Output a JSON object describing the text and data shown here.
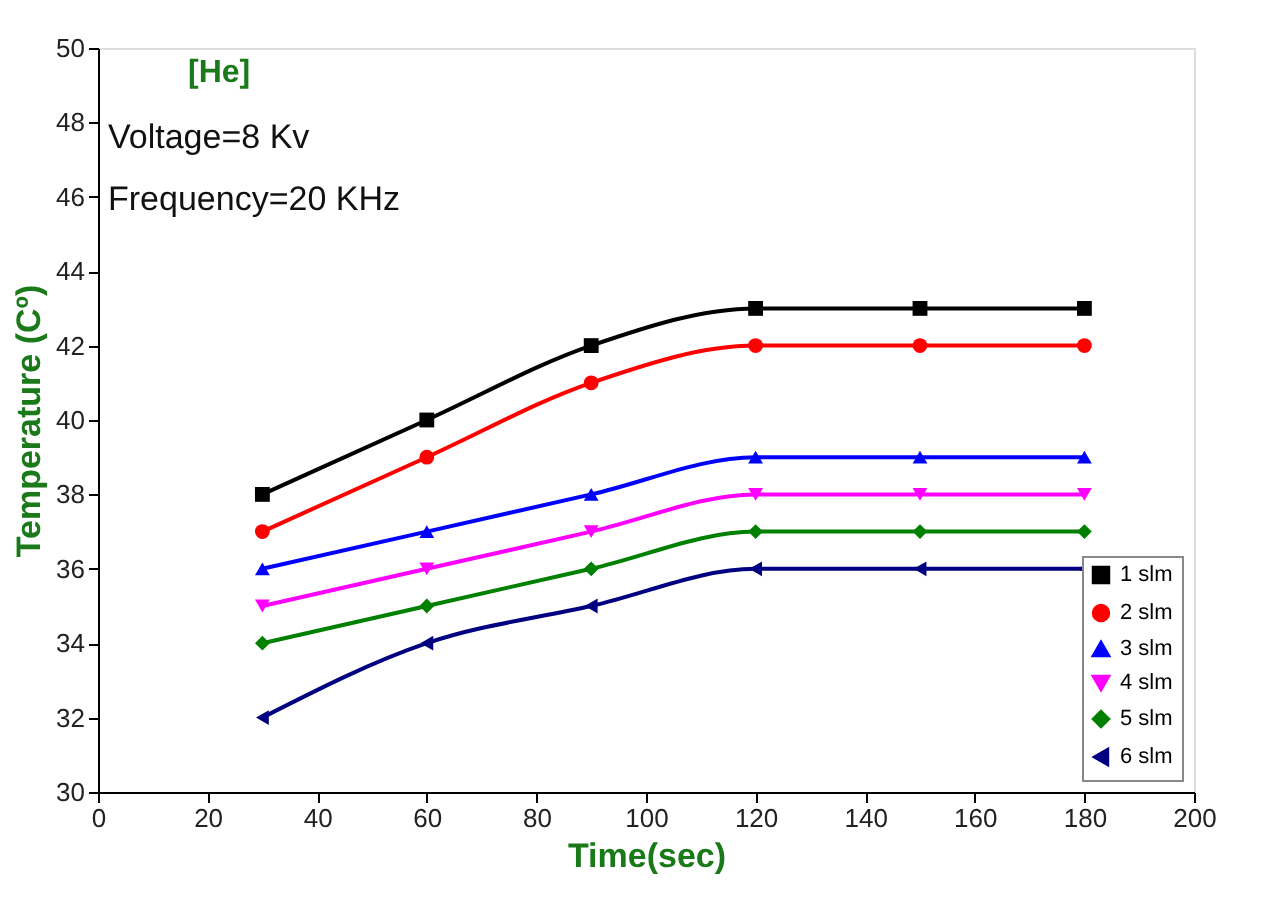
{
  "chart_data": {
    "type": "line",
    "xlabel": "Time(sec)",
    "ylabel": "Temperature (Cº)",
    "annotations": [
      "[He]",
      "Voltage=8 Kv",
      "Frequency=20 KHz"
    ],
    "x": [
      30,
      60,
      90,
      120,
      150,
      180
    ],
    "series": [
      {
        "name": "1 slm",
        "color": "#000000",
        "marker": "square",
        "values": [
          38,
          40,
          42,
          43,
          43,
          43
        ]
      },
      {
        "name": "2 slm",
        "color": "#ff0000",
        "marker": "circle",
        "values": [
          37,
          39,
          41,
          42,
          42,
          42
        ]
      },
      {
        "name": "3 slm",
        "color": "#0000ff",
        "marker": "triangle",
        "values": [
          36,
          37,
          38,
          39,
          39,
          39
        ]
      },
      {
        "name": "4 slm",
        "color": "#ff00ff",
        "marker": "triangle-down",
        "values": [
          35,
          36,
          37,
          38,
          38,
          38
        ]
      },
      {
        "name": "5 slm",
        "color": "#008000",
        "marker": "diamond",
        "values": [
          34,
          35,
          36,
          37,
          37,
          37
        ]
      },
      {
        "name": "6 slm",
        "color": "#000080",
        "marker": "triangle-left",
        "values": [
          32,
          34,
          35,
          36,
          36,
          36
        ]
      }
    ],
    "xlim": [
      0,
      200
    ],
    "xticks": [
      0,
      20,
      40,
      60,
      80,
      100,
      120,
      140,
      160,
      180,
      200
    ],
    "ylim": [
      30,
      50
    ],
    "yticks": [
      30,
      32,
      34,
      36,
      38,
      40,
      42,
      44,
      46,
      48,
      50
    ],
    "grid": false,
    "legend": "bottom right",
    "line_style": "solid"
  }
}
